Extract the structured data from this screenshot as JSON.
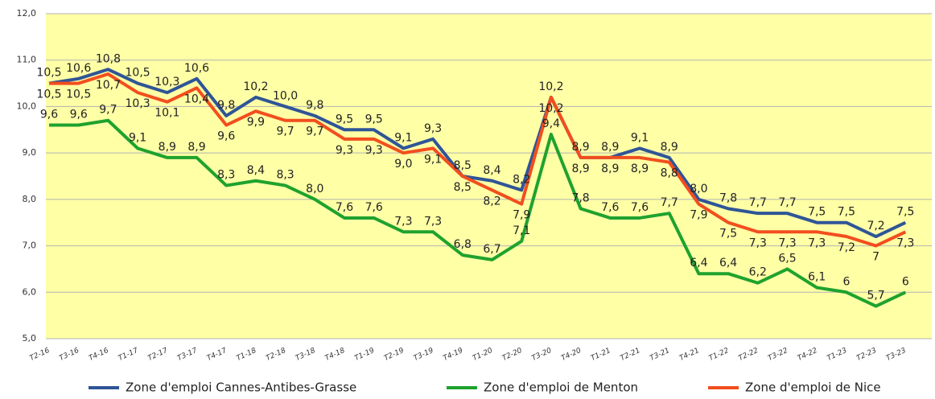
{
  "chart_data": {
    "type": "line",
    "categories": [
      "T2-16",
      "T3-16",
      "T4-16",
      "T1-17",
      "T2-17",
      "T3-17",
      "T4-17",
      "T1-18",
      "T2-18",
      "T3-18",
      "T4-18",
      "T1-19",
      "T2-19",
      "T3-19",
      "T4-19",
      "T1-20",
      "T2-20",
      "T3-20",
      "T4-20",
      "T1-21",
      "T2-21",
      "T3-21",
      "T4-21",
      "T1-22",
      "T2-22",
      "T3-22",
      "T4-22",
      "T1-23",
      "T2-23",
      "T3-23"
    ],
    "series": [
      {
        "name": "Zone d'emploi Cannes-Antibes-Grasse",
        "color": "#2f5597",
        "values": [
          10.5,
          10.6,
          10.8,
          10.5,
          10.3,
          10.6,
          9.8,
          10.2,
          10.0,
          9.8,
          9.5,
          9.5,
          9.1,
          9.3,
          8.5,
          8.4,
          8.2,
          10.2,
          8.9,
          8.9,
          9.1,
          8.9,
          8.0,
          7.8,
          7.7,
          7.7,
          7.5,
          7.5,
          7.2,
          7.5
        ],
        "value_labels": [
          "10,5",
          "10,6",
          "10,8",
          "10,5",
          "10,3",
          "10,6",
          "9,8",
          "10,2",
          "10,0",
          "9,8",
          "9,5",
          "9,5",
          "9,1",
          "9,3",
          "8,5",
          "8,4",
          "8,2",
          "10,2",
          "8,9",
          "8,9",
          "9,1",
          "8,9",
          "8,0",
          "7,8",
          "7,7",
          "7,7",
          "7,5",
          "7,5",
          "7,2",
          "7,5"
        ]
      },
      {
        "name": "Zone d'emploi de Menton",
        "color": "#1fa22e",
        "values": [
          9.6,
          9.6,
          9.7,
          9.1,
          8.9,
          8.9,
          8.3,
          8.4,
          8.3,
          8.0,
          7.6,
          7.6,
          7.3,
          7.3,
          6.8,
          6.7,
          7.1,
          9.4,
          7.8,
          7.6,
          7.6,
          7.7,
          6.4,
          6.4,
          6.2,
          6.5,
          6.1,
          6,
          5.7,
          6
        ],
        "value_labels": [
          "9,6",
          "9,6",
          "9,7",
          "9,1",
          "8,9",
          "8,9",
          "8,3",
          "8,4",
          "8,3",
          "8,0",
          "7,6",
          "7,6",
          "7,3",
          "7,3",
          "6,8",
          "6,7",
          "7,1",
          "9,4",
          "7,8",
          "7,6",
          "7,6",
          "7,7",
          "6,4",
          "6,4",
          "6,2",
          "6,5",
          "6,1",
          "6",
          "5,7",
          "6"
        ]
      },
      {
        "name": "Zone d'emploi de Nice",
        "color": "#f24e1e",
        "values": [
          10.5,
          10.5,
          10.7,
          10.3,
          10.1,
          10.4,
          9.6,
          9.9,
          9.7,
          9.7,
          9.3,
          9.3,
          9.0,
          9.1,
          8.5,
          8.2,
          7.9,
          10.2,
          8.9,
          8.9,
          8.9,
          8.8,
          7.9,
          7.5,
          7.3,
          7.3,
          7.3,
          7.2,
          7,
          7.3
        ],
        "value_labels": [
          "10,5",
          "10,5",
          "10,7",
          "10,3",
          "10,1",
          "10,4",
          "9,6",
          "9,9",
          "9,7",
          "9,7",
          "9,3",
          "9,3",
          "9,0",
          "9,1",
          "8,5",
          "8,2",
          "7,9",
          "10,2",
          "8,9",
          "8,9",
          "8,9",
          "8,8",
          "7,9",
          "7,5",
          "7,3",
          "7,3",
          "7,3",
          "7,2",
          "7",
          "7,3"
        ]
      }
    ],
    "ylim": [
      5,
      12
    ],
    "yticks": [
      {
        "value": 5,
        "label": "5,0"
      },
      {
        "value": 6,
        "label": "6,0"
      },
      {
        "value": 7,
        "label": "7,0"
      },
      {
        "value": 8,
        "label": "8,0"
      },
      {
        "value": 9,
        "label": "9,0"
      },
      {
        "value": 10,
        "label": "10,0"
      },
      {
        "value": 11,
        "label": "11,0"
      },
      {
        "value": 12,
        "label": "12,0"
      }
    ],
    "grid": true,
    "legend": "bottom",
    "plot_background": "#ffffa6"
  }
}
